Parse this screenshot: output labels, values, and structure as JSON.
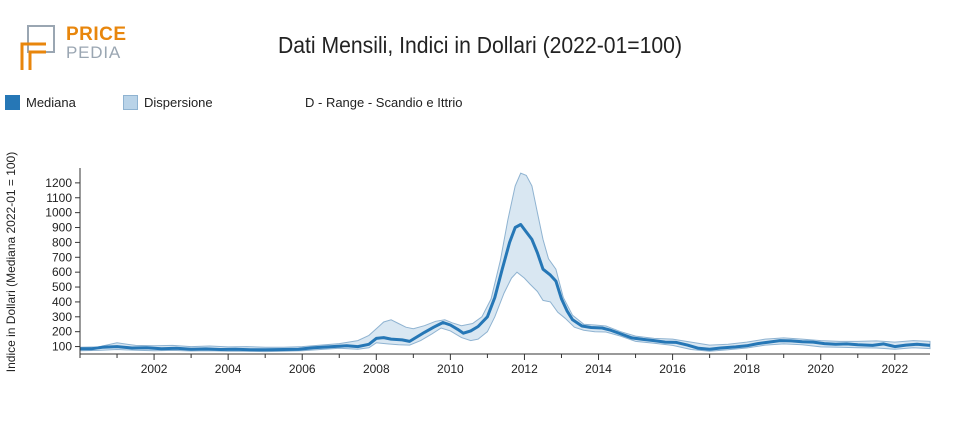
{
  "logo": {
    "line1": "PRICE",
    "line2": "PEDIA"
  },
  "title": "Dati Mensili, Indici in Dollari (2022-01=100)",
  "legend": {
    "median_label": "Mediana",
    "dispersion_label": "Dispersione",
    "series_label": "D - Range - Scandio e Ittrio"
  },
  "colors": {
    "median": "#2677b6",
    "band_fill": "#b9d3e8",
    "band_stroke": "#8fb3d1"
  },
  "chart_data": {
    "type": "area",
    "title": "Dati Mensili, Indici in Dollari (2022-01=100)",
    "ylabel": "Indice in Dollari (Mediana 2022-01 = 100)",
    "xlabel": "",
    "xlim": [
      2000.0,
      2022.95
    ],
    "ylim": [
      50,
      1300
    ],
    "x_ticks": [
      2002,
      2004,
      2006,
      2008,
      2010,
      2012,
      2014,
      2016,
      2018,
      2020,
      2022
    ],
    "y_ticks": [
      100,
      200,
      300,
      400,
      500,
      600,
      700,
      800,
      900,
      1000,
      1100,
      1200
    ],
    "grid": false,
    "legend_position": "top-left",
    "series": [
      {
        "name": "Mediana",
        "role": "median",
        "points": [
          [
            2000.0,
            85
          ],
          [
            2000.3,
            85
          ],
          [
            2000.6,
            95
          ],
          [
            2001.0,
            100
          ],
          [
            2001.4,
            90
          ],
          [
            2001.8,
            92
          ],
          [
            2002.2,
            85
          ],
          [
            2002.6,
            88
          ],
          [
            2003.0,
            82
          ],
          [
            2003.4,
            84
          ],
          [
            2003.8,
            80
          ],
          [
            2004.2,
            82
          ],
          [
            2004.6,
            78
          ],
          [
            2005.0,
            78
          ],
          [
            2005.5,
            80
          ],
          [
            2005.9,
            82
          ],
          [
            2006.3,
            92
          ],
          [
            2006.7,
            98
          ],
          [
            2007.2,
            105
          ],
          [
            2007.5,
            100
          ],
          [
            2007.8,
            115
          ],
          [
            2008.0,
            155
          ],
          [
            2008.2,
            160
          ],
          [
            2008.4,
            150
          ],
          [
            2008.7,
            145
          ],
          [
            2008.9,
            135
          ],
          [
            2009.1,
            165
          ],
          [
            2009.3,
            195
          ],
          [
            2009.55,
            230
          ],
          [
            2009.8,
            262
          ],
          [
            2010.0,
            245
          ],
          [
            2010.2,
            215
          ],
          [
            2010.35,
            190
          ],
          [
            2010.55,
            205
          ],
          [
            2010.75,
            235
          ],
          [
            2011.0,
            300
          ],
          [
            2011.2,
            430
          ],
          [
            2011.4,
            620
          ],
          [
            2011.6,
            800
          ],
          [
            2011.75,
            900
          ],
          [
            2011.9,
            920
          ],
          [
            2012.05,
            870
          ],
          [
            2012.2,
            820
          ],
          [
            2012.35,
            730
          ],
          [
            2012.5,
            620
          ],
          [
            2012.7,
            580
          ],
          [
            2012.85,
            540
          ],
          [
            2013.0,
            420
          ],
          [
            2013.15,
            340
          ],
          [
            2013.3,
            280
          ],
          [
            2013.55,
            238
          ],
          [
            2013.8,
            228
          ],
          [
            2014.1,
            225
          ],
          [
            2014.3,
            212
          ],
          [
            2014.6,
            185
          ],
          [
            2014.9,
            158
          ],
          [
            2015.2,
            148
          ],
          [
            2015.5,
            140
          ],
          [
            2015.8,
            130
          ],
          [
            2016.1,
            128
          ],
          [
            2016.4,
            110
          ],
          [
            2016.7,
            88
          ],
          [
            2017.0,
            82
          ],
          [
            2017.3,
            90
          ],
          [
            2017.7,
            98
          ],
          [
            2018.0,
            105
          ],
          [
            2018.3,
            120
          ],
          [
            2018.6,
            130
          ],
          [
            2018.9,
            140
          ],
          [
            2019.2,
            138
          ],
          [
            2019.5,
            132
          ],
          [
            2019.8,
            130
          ],
          [
            2020.1,
            120
          ],
          [
            2020.4,
            115
          ],
          [
            2020.7,
            118
          ],
          [
            2021.0,
            112
          ],
          [
            2021.4,
            108
          ],
          [
            2021.7,
            118
          ],
          [
            2022.0,
            100
          ],
          [
            2022.3,
            110
          ],
          [
            2022.6,
            115
          ],
          [
            2022.95,
            108
          ]
        ]
      },
      {
        "name": "Dispersione",
        "role": "band_upper",
        "points": [
          [
            2000.0,
            95
          ],
          [
            2000.5,
            98
          ],
          [
            2001.0,
            125
          ],
          [
            2001.5,
            108
          ],
          [
            2002.0,
            105
          ],
          [
            2002.5,
            108
          ],
          [
            2003.0,
            100
          ],
          [
            2003.5,
            104
          ],
          [
            2004.0,
            98
          ],
          [
            2004.5,
            100
          ],
          [
            2005.0,
            95
          ],
          [
            2005.5,
            96
          ],
          [
            2006.0,
            100
          ],
          [
            2006.5,
            110
          ],
          [
            2007.0,
            120
          ],
          [
            2007.5,
            140
          ],
          [
            2007.8,
            175
          ],
          [
            2008.0,
            220
          ],
          [
            2008.2,
            265
          ],
          [
            2008.4,
            280
          ],
          [
            2008.6,
            255
          ],
          [
            2008.8,
            230
          ],
          [
            2009.0,
            220
          ],
          [
            2009.3,
            240
          ],
          [
            2009.6,
            270
          ],
          [
            2009.85,
            280
          ],
          [
            2010.05,
            260
          ],
          [
            2010.3,
            240
          ],
          [
            2010.6,
            255
          ],
          [
            2010.85,
            300
          ],
          [
            2011.1,
            420
          ],
          [
            2011.35,
            680
          ],
          [
            2011.55,
            950
          ],
          [
            2011.75,
            1180
          ],
          [
            2011.9,
            1265
          ],
          [
            2012.05,
            1250
          ],
          [
            2012.2,
            1180
          ],
          [
            2012.35,
            1000
          ],
          [
            2012.5,
            820
          ],
          [
            2012.65,
            690
          ],
          [
            2012.85,
            620
          ],
          [
            2013.05,
            430
          ],
          [
            2013.3,
            310
          ],
          [
            2013.6,
            250
          ],
          [
            2013.9,
            245
          ],
          [
            2014.2,
            238
          ],
          [
            2014.6,
            200
          ],
          [
            2015.0,
            170
          ],
          [
            2015.5,
            155
          ],
          [
            2016.0,
            150
          ],
          [
            2016.5,
            130
          ],
          [
            2017.0,
            110
          ],
          [
            2017.5,
            115
          ],
          [
            2018.0,
            130
          ],
          [
            2018.5,
            150
          ],
          [
            2019.0,
            158
          ],
          [
            2019.5,
            150
          ],
          [
            2020.0,
            140
          ],
          [
            2020.5,
            135
          ],
          [
            2021.0,
            135
          ],
          [
            2021.5,
            138
          ],
          [
            2022.0,
            130
          ],
          [
            2022.5,
            140
          ],
          [
            2022.95,
            135
          ]
        ]
      },
      {
        "name": "Dispersione",
        "role": "band_lower",
        "points": [
          [
            2000.0,
            72
          ],
          [
            2000.5,
            74
          ],
          [
            2001.0,
            80
          ],
          [
            2001.5,
            75
          ],
          [
            2002.0,
            72
          ],
          [
            2002.5,
            74
          ],
          [
            2003.0,
            70
          ],
          [
            2003.5,
            72
          ],
          [
            2004.0,
            68
          ],
          [
            2004.5,
            68
          ],
          [
            2005.0,
            66
          ],
          [
            2005.5,
            68
          ],
          [
            2006.0,
            72
          ],
          [
            2006.5,
            80
          ],
          [
            2007.0,
            88
          ],
          [
            2007.5,
            82
          ],
          [
            2007.8,
            92
          ],
          [
            2008.0,
            125
          ],
          [
            2008.3,
            118
          ],
          [
            2008.6,
            112
          ],
          [
            2008.9,
            110
          ],
          [
            2009.2,
            140
          ],
          [
            2009.5,
            185
          ],
          [
            2009.75,
            225
          ],
          [
            2010.0,
            205
          ],
          [
            2010.3,
            160
          ],
          [
            2010.55,
            140
          ],
          [
            2010.75,
            150
          ],
          [
            2011.0,
            200
          ],
          [
            2011.2,
            300
          ],
          [
            2011.45,
            460
          ],
          [
            2011.65,
            560
          ],
          [
            2011.8,
            600
          ],
          [
            2012.0,
            560
          ],
          [
            2012.15,
            520
          ],
          [
            2012.35,
            470
          ],
          [
            2012.5,
            410
          ],
          [
            2012.7,
            400
          ],
          [
            2012.9,
            330
          ],
          [
            2013.1,
            290
          ],
          [
            2013.35,
            230
          ],
          [
            2013.6,
            210
          ],
          [
            2013.9,
            200
          ],
          [
            2014.2,
            198
          ],
          [
            2014.6,
            170
          ],
          [
            2015.0,
            135
          ],
          [
            2015.5,
            122
          ],
          [
            2016.0,
            108
          ],
          [
            2016.5,
            80
          ],
          [
            2017.0,
            68
          ],
          [
            2017.5,
            78
          ],
          [
            2018.0,
            90
          ],
          [
            2018.5,
            110
          ],
          [
            2019.0,
            118
          ],
          [
            2019.5,
            112
          ],
          [
            2020.0,
            98
          ],
          [
            2020.5,
            95
          ],
          [
            2021.0,
            92
          ],
          [
            2021.5,
            90
          ],
          [
            2022.0,
            82
          ],
          [
            2022.5,
            92
          ],
          [
            2022.95,
            86
          ]
        ]
      }
    ]
  }
}
